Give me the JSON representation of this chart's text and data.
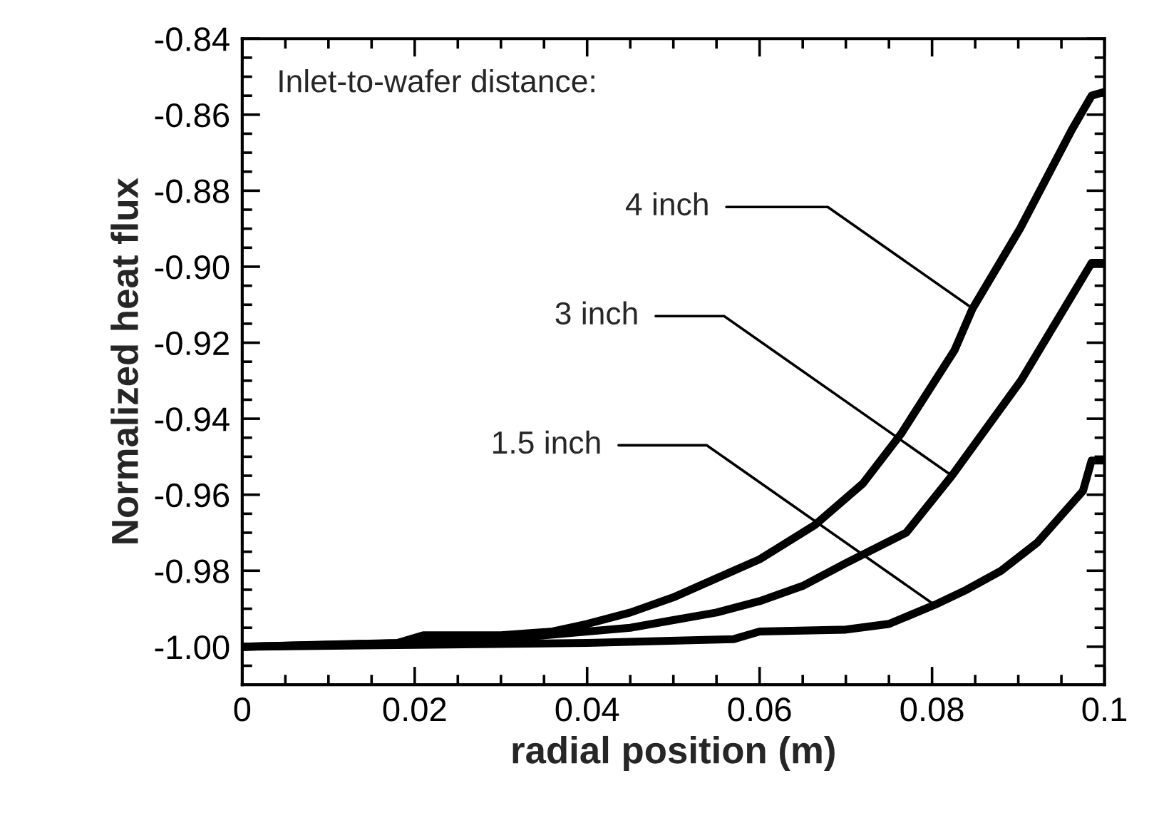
{
  "chart_data": {
    "type": "line",
    "xlabel": "radial position (m)",
    "ylabel": "Normalized heat flux",
    "xlim": [
      0,
      0.1
    ],
    "ylim": [
      -1.01,
      -0.84
    ],
    "xticks": [
      0,
      0.02,
      0.04,
      0.06,
      0.08,
      0.1
    ],
    "yticks": [
      {
        "value": -1.0,
        "label": "-1.00"
      },
      {
        "value": -0.98,
        "label": "-0.98"
      },
      {
        "value": -0.96,
        "label": "-0.96"
      },
      {
        "value": -0.94,
        "label": "-0.94"
      },
      {
        "value": -0.92,
        "label": "-0.92"
      },
      {
        "value": -0.9,
        "label": "-0.90"
      },
      {
        "value": -0.88,
        "label": "-0.88"
      },
      {
        "value": -0.86,
        "label": "-0.86"
      },
      {
        "value": -0.84,
        "label": "-0.84"
      }
    ],
    "grid": false,
    "legend": false,
    "marker": "none",
    "line_style": "solid",
    "series": [
      {
        "color": "#000000",
        "x": [
          0,
          0.018,
          0.021,
          0.03,
          0.036,
          0.04,
          0.045,
          0.05,
          0.055,
          0.06,
          0.0664,
          0.072,
          0.0764,
          0.0826,
          0.0847,
          0.0902,
          0.0962,
          0.0985,
          0.1
        ],
        "values": [
          -1.0,
          -0.999,
          -0.997,
          -0.997,
          -0.996,
          -0.994,
          -0.991,
          -0.987,
          -0.982,
          -0.977,
          -0.968,
          -0.957,
          -0.944,
          -0.922,
          -0.911,
          -0.89,
          -0.864,
          -0.855,
          -0.854
        ]
      },
      {
        "color": "#000000",
        "x": [
          0,
          0.02,
          0.03,
          0.04,
          0.045,
          0.05,
          0.055,
          0.06,
          0.065,
          0.07,
          0.077,
          0.0823,
          0.0903,
          0.0985,
          0.1
        ],
        "values": [
          -1.0,
          -0.999,
          -0.998,
          -0.996,
          -0.995,
          -0.993,
          -0.991,
          -0.988,
          -0.984,
          -0.978,
          -0.97,
          -0.955,
          -0.93,
          -0.899,
          -0.899
        ]
      },
      {
        "color": "#000000",
        "x": [
          0,
          0.02,
          0.04,
          0.057,
          0.06,
          0.07,
          0.075,
          0.0803,
          0.084,
          0.088,
          0.0922,
          0.0975,
          0.0985,
          0.1
        ],
        "values": [
          -1.0,
          -0.9995,
          -0.999,
          -0.998,
          -0.996,
          -0.9955,
          -0.994,
          -0.989,
          -0.985,
          -0.98,
          -0.9726,
          -0.959,
          -0.951,
          -0.951
        ]
      }
    ],
    "annotations": [
      "Inlet-to-wafer distance:",
      {
        "text": "4 inch",
        "x": 0.0847,
        "y": -0.911
      },
      {
        "text": "3 inch",
        "x": 0.0823,
        "y": -0.955
      },
      {
        "text": "1.5 inch",
        "x": 0.0803,
        "y": -0.989
      }
    ]
  }
}
